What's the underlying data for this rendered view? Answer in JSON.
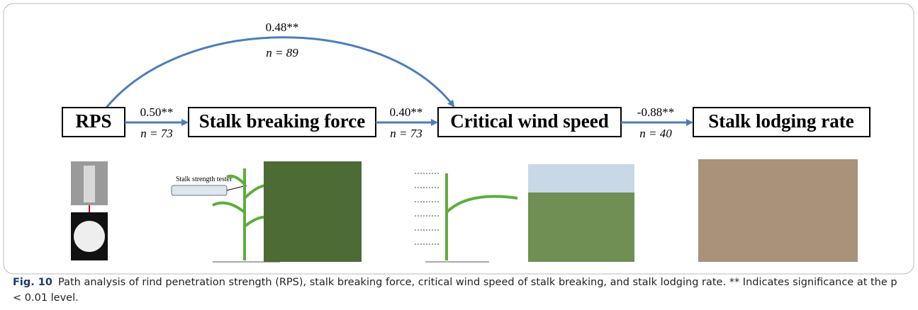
{
  "nodes": [
    {
      "label": "RPS"
    },
    {
      "label": "Stalk breaking force"
    },
    {
      "label": "Critical wind speed"
    },
    {
      "label": "Stalk lodging rate"
    }
  ],
  "edges": [
    {
      "coef": "0.50**",
      "n": "n = 73"
    },
    {
      "coef": "0.40**",
      "n": "n = 73"
    },
    {
      "coef": "-0.88**",
      "n": "n = 40"
    },
    {
      "coef": "0.48**",
      "n": "n = 89"
    }
  ],
  "image_label": "Stalk strength tester",
  "caption": {
    "label": "Fig. 10",
    "text": "Path analysis of rind penetration strength (RPS), stalk breaking force, critical wind speed of stalk breaking, and stalk lodging rate. ** Indicates significance at the p < 0.01 level."
  }
}
